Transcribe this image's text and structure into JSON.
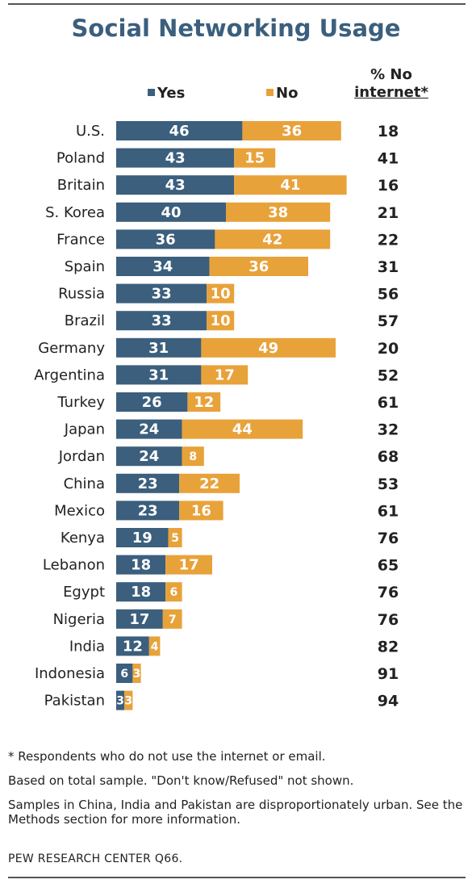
{
  "title": "Social Networking Usage",
  "legend": {
    "yes_label": "Yes",
    "no_label": "No"
  },
  "column_header": {
    "line1": "% No",
    "line2": "internet*"
  },
  "colors": {
    "yes": "#3b5f7d",
    "no": "#e8a23a",
    "title": "#3b5f7d"
  },
  "chart_data": {
    "type": "bar",
    "orientation": "horizontal",
    "stacked": true,
    "title": "Social Networking Usage",
    "categories": [
      "U.S.",
      "Poland",
      "Britain",
      "S. Korea",
      "France",
      "Spain",
      "Russia",
      "Brazil",
      "Germany",
      "Argentina",
      "Turkey",
      "Japan",
      "Jordan",
      "China",
      "Mexico",
      "Kenya",
      "Lebanon",
      "Egypt",
      "Nigeria",
      "India",
      "Indonesia",
      "Pakistan"
    ],
    "series": [
      {
        "name": "Yes",
        "values": [
          46,
          43,
          43,
          40,
          36,
          34,
          33,
          33,
          31,
          31,
          26,
          24,
          24,
          23,
          23,
          19,
          18,
          18,
          17,
          12,
          6,
          3
        ]
      },
      {
        "name": "No",
        "values": [
          36,
          15,
          41,
          38,
          42,
          36,
          10,
          10,
          49,
          17,
          12,
          44,
          8,
          22,
          16,
          5,
          17,
          6,
          7,
          4,
          3,
          3
        ]
      }
    ],
    "no_internet": [
      18,
      41,
      16,
      21,
      22,
      31,
      56,
      57,
      20,
      52,
      61,
      32,
      68,
      53,
      61,
      76,
      65,
      76,
      76,
      82,
      91,
      94
    ],
    "grid": false,
    "legend_position": "top"
  },
  "notes": [
    "* Respondents who do not use the internet or email.",
    "Based on total sample. \"Don't know/Refused\" not shown.",
    "Samples in China, India and Pakistan are disproportionately urban. See the Methods section for more information."
  ],
  "source": "PEW RESEARCH CENTER Q66."
}
